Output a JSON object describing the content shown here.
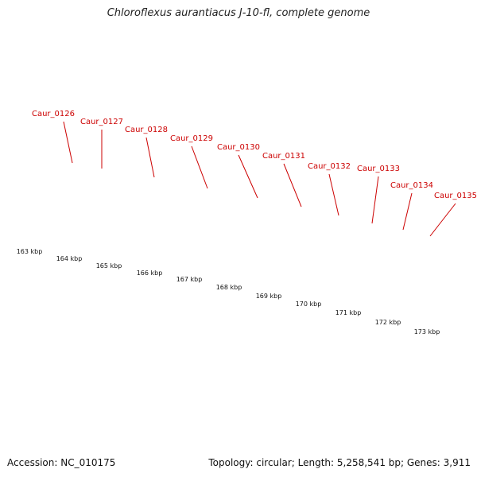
{
  "header": {
    "title": "Chloroflexus aurantiacus J-10-fl, complete genome"
  },
  "footer": {
    "accession_text": "Accession: NC_010175",
    "summary_text": "Topology: circular; Length: 5,258,541 bp; Genes: 3,911"
  },
  "colors": {
    "forward_gene": "#ff0000",
    "rna_gene": "#5a5a9c",
    "other_gene": "#bdbdbd",
    "dark_gene": "#00007a",
    "tick": "#1a7a1a",
    "backbone": "#888888",
    "locus_label": "#cc0000"
  },
  "chart_data": {
    "type": "genome_map",
    "title": "Chloroflexus aurantiacus J-10-fl, complete genome",
    "accession": "NC_010175",
    "topology": "circular",
    "length_bp": 5258541,
    "gene_count": 3911,
    "scale_labels": [
      "163 kbp",
      "164 kbp",
      "165 kbp",
      "166 kbp",
      "167 kbp",
      "168 kbp",
      "169 kbp",
      "170 kbp",
      "171 kbp",
      "172 kbp",
      "173 kbp"
    ],
    "locus_labels": [
      "Caur_0126",
      "Caur_0127",
      "Caur_0128",
      "Caur_0129",
      "Caur_0130",
      "Caur_0131",
      "Caur_0132",
      "Caur_0133",
      "Caur_0134",
      "Caur_0135"
    ]
  }
}
